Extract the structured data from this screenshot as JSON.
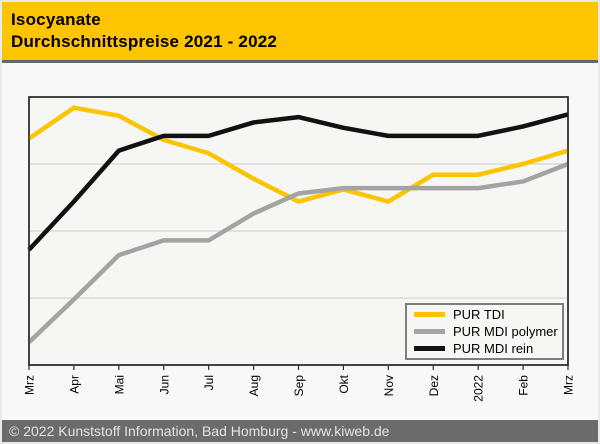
{
  "header": {
    "title_line1": "Isocyanate",
    "title_line2": "Durchschnittspreise 2021 - 2022",
    "bg_color": "#FDC500",
    "text_color": "#000000"
  },
  "footer": {
    "text": "© 2022 Kunststoff Information, Bad Homburg - www.kiweb.de",
    "bg_color": "#6B6B6B",
    "text_color": "#E4E4E4"
  },
  "chart_data": {
    "type": "line",
    "title": "Isocyanate Durchschnittspreise 2021 - 2022",
    "categories": [
      "Mrz",
      "Apr",
      "Mai",
      "Jun",
      "Jul",
      "Aug",
      "Sep",
      "Okt",
      "Nov",
      "Dez",
      "2022",
      "Feb",
      "Mrz"
    ],
    "series": [
      {
        "name": "PUR TDI",
        "color": "#FBC400",
        "values": [
          84.5,
          96,
          93,
          84,
          79,
          69.5,
          61,
          65.5,
          61,
          71,
          71,
          75,
          80
        ]
      },
      {
        "name": "PUR MDI polymer",
        "color": "#A3A3A3",
        "values": [
          8.5,
          24.5,
          41,
          46.5,
          46.5,
          56.5,
          64,
          66,
          66,
          66,
          66,
          68.5,
          75
        ]
      },
      {
        "name": "PUR MDI rein",
        "color": "#111111",
        "values": [
          43,
          61,
          80,
          85.5,
          85.5,
          90.5,
          92.5,
          88.5,
          85.5,
          85.5,
          85.5,
          89,
          93.5
        ]
      }
    ],
    "draw_order": [
      "PUR TDI",
      "PUR MDI polymer",
      "PUR MDI rein"
    ],
    "xlabel": "",
    "ylabel": "",
    "ylim": [
      0,
      100
    ],
    "y_axis_labels_visible": false,
    "y_units": "relative level, % of plot height (chart shows no y-axis labels)",
    "grid": {
      "horizontal_at": [
        25,
        50,
        75
      ],
      "color": "#CCCCCC"
    },
    "plot_bg": "#F6F6F5",
    "frame_color": "#2B2B2B",
    "legend_position": "bottom-right"
  }
}
